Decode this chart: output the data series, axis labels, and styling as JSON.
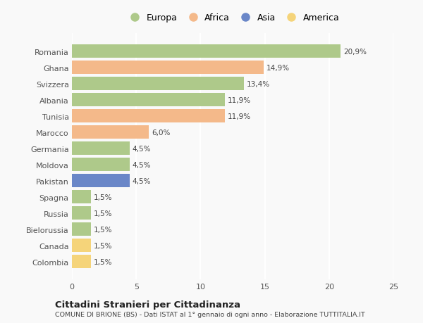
{
  "countries": [
    "Romania",
    "Ghana",
    "Svizzera",
    "Albania",
    "Tunisia",
    "Marocco",
    "Germania",
    "Moldova",
    "Pakistan",
    "Spagna",
    "Russia",
    "Bielorussia",
    "Canada",
    "Colombia"
  ],
  "values": [
    20.9,
    14.9,
    13.4,
    11.9,
    11.9,
    6.0,
    4.5,
    4.5,
    4.5,
    1.5,
    1.5,
    1.5,
    1.5,
    1.5
  ],
  "labels": [
    "20,9%",
    "14,9%",
    "13,4%",
    "11,9%",
    "11,9%",
    "6,0%",
    "4,5%",
    "4,5%",
    "4,5%",
    "1,5%",
    "1,5%",
    "1,5%",
    "1,5%",
    "1,5%"
  ],
  "bar_colors": [
    "#aec98a",
    "#f4b98a",
    "#aec98a",
    "#aec98a",
    "#f4b98a",
    "#f4b98a",
    "#aec98a",
    "#aec98a",
    "#6a87c8",
    "#aec98a",
    "#aec98a",
    "#aec98a",
    "#f5d47a",
    "#f5d47a"
  ],
  "legend_labels": [
    "Europa",
    "Africa",
    "Asia",
    "America"
  ],
  "legend_colors": [
    "#aec98a",
    "#f4b98a",
    "#6a87c8",
    "#f5d47a"
  ],
  "title": "Cittadini Stranieri per Cittadinanza",
  "subtitle": "COMUNE DI BRIONE (BS) - Dati ISTAT al 1° gennaio di ogni anno - Elaborazione TUTTITALIA.IT",
  "xlim": [
    0,
    25
  ],
  "xticks": [
    0,
    5,
    10,
    15,
    20,
    25
  ],
  "background_color": "#f9f9f9",
  "grid_color": "#ffffff",
  "bar_height": 0.82
}
